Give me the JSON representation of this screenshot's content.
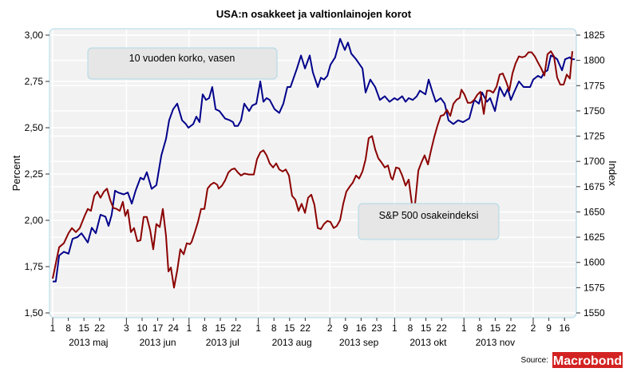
{
  "chart_data": {
    "type": "line",
    "title": "USA:n osakkeet ja valtionlainojen korot",
    "x_unit": "days since 2013-05-01",
    "ylabel_left": "Percent",
    "ylabel_right": "Index",
    "ylim_left": [
      1.5,
      3.0
    ],
    "ylim_right": [
      1550,
      1825
    ],
    "yticks_left": [
      "3,00",
      "2,75",
      "2,50",
      "2,25",
      "2,00",
      "1,75",
      "1,50"
    ],
    "yticks_left_values": [
      3.0,
      2.75,
      2.5,
      2.25,
      2.0,
      1.75,
      1.5
    ],
    "yticks_right": [
      "1825",
      "1800",
      "1775",
      "1750",
      "1725",
      "1700",
      "1675",
      "1650",
      "1625",
      "1600",
      "1575",
      "1550"
    ],
    "yticks_right_values": [
      1825,
      1800,
      1775,
      1750,
      1725,
      1700,
      1675,
      1650,
      1625,
      1600,
      1575,
      1550
    ],
    "xticks": [
      {
        "label": "1",
        "day": 0,
        "major": true
      },
      {
        "label": "8",
        "day": 7
      },
      {
        "label": "15",
        "day": 14
      },
      {
        "label": "22",
        "day": 21
      },
      {
        "label": "3",
        "day": 33,
        "major": true
      },
      {
        "label": "10",
        "day": 40
      },
      {
        "label": "17",
        "day": 47
      },
      {
        "label": "24",
        "day": 54
      },
      {
        "label": "1",
        "day": 61,
        "major": true
      },
      {
        "label": "8",
        "day": 68
      },
      {
        "label": "15",
        "day": 75
      },
      {
        "label": "22",
        "day": 82
      },
      {
        "label": "1",
        "day": 92,
        "major": true
      },
      {
        "label": "8",
        "day": 99
      },
      {
        "label": "15",
        "day": 106
      },
      {
        "label": "22",
        "day": 113
      },
      {
        "label": "2",
        "day": 124,
        "major": true
      },
      {
        "label": "9",
        "day": 131
      },
      {
        "label": "16",
        "day": 138
      },
      {
        "label": "23",
        "day": 145
      },
      {
        "label": "1",
        "day": 153,
        "major": true
      },
      {
        "label": "8",
        "day": 160
      },
      {
        "label": "15",
        "day": 167
      },
      {
        "label": "22",
        "day": 174
      },
      {
        "label": "1",
        "day": 184,
        "major": true
      },
      {
        "label": "8",
        "day": 191
      },
      {
        "label": "15",
        "day": 198
      },
      {
        "label": "22",
        "day": 205
      },
      {
        "label": "2",
        "day": 215,
        "major": true
      },
      {
        "label": "9",
        "day": 222
      },
      {
        "label": "16",
        "day": 229
      }
    ],
    "month_labels": [
      {
        "label": "2013 maj",
        "day": 16
      },
      {
        "label": "2013 jun",
        "day": 47
      },
      {
        "label": "2013 jul",
        "day": 76
      },
      {
        "label": "2013 aug",
        "day": 107
      },
      {
        "label": "2013 sep",
        "day": 137
      },
      {
        "label": "2013 okt",
        "day": 168
      },
      {
        "label": "2013 nov",
        "day": 198
      }
    ],
    "grid": true,
    "series": [
      {
        "name": "10 vuoden korko, vasen",
        "axis": "left",
        "color": "#00008b",
        "x": [
          0,
          1.4,
          2.9,
          5,
          7.1,
          8.9,
          11.1,
          12.9,
          15.7,
          17.5,
          19.3,
          21.4,
          23.6,
          25,
          26.4,
          27.9,
          29.3,
          31.8,
          33.6,
          35.4,
          37.1,
          39.3,
          40.7,
          42.1,
          44.3,
          46.4,
          48.6,
          50.7,
          52.1,
          53.9,
          55.7,
          57.9,
          59.6,
          60.7,
          62.9,
          64.3,
          65.7,
          67.1,
          68.6,
          70,
          71.4,
          72.9,
          74.6,
          77.1,
          79.3,
          80.7,
          81.4,
          82.9,
          84.3,
          85.7,
          87.9,
          89.3,
          91.1,
          92.9,
          94.3,
          95.7,
          97.1,
          99.3,
          101.4,
          103.2,
          105,
          106.4,
          109.3,
          111.1,
          112.9,
          115,
          116.4,
          118.6,
          120,
          121.4,
          122.9,
          124.3,
          126.4,
          128.6,
          130.7,
          132.1,
          133.6,
          135.7,
          138.6,
          140,
          142.1,
          144.3,
          146.4,
          148.6,
          150.7,
          152.9,
          154.3,
          156.4,
          157.9,
          159.3,
          161.1,
          162.9,
          164.3,
          166.8,
          168.2,
          170,
          171.4,
          173.6,
          175.4,
          177.1,
          179.3,
          181.4,
          183.6,
          185,
          186.4,
          188.6,
          190.7,
          192.1,
          194.3,
          195.7,
          197.9,
          200,
          202.1,
          203.6,
          205,
          206.4,
          208.6,
          210.7,
          213.6,
          215,
          217.1,
          218.6,
          220,
          221.4,
          222.9,
          224.6,
          225.7,
          227.9,
          229.3,
          231.4,
          232.1,
          233.6
        ],
        "values": [
          1.67,
          1.67,
          1.81,
          1.83,
          1.82,
          1.9,
          1.91,
          1.93,
          1.88,
          1.96,
          1.93,
          2.03,
          2.02,
          1.97,
          2.03,
          2.16,
          2.15,
          2.14,
          2.15,
          2.09,
          2.16,
          2.23,
          2.22,
          2.26,
          2.17,
          2.19,
          2.35,
          2.44,
          2.54,
          2.6,
          2.63,
          2.54,
          2.52,
          2.5,
          2.52,
          2.56,
          2.53,
          2.68,
          2.65,
          2.66,
          2.72,
          2.6,
          2.59,
          2.55,
          2.54,
          2.53,
          2.51,
          2.51,
          2.54,
          2.63,
          2.59,
          2.62,
          2.63,
          2.75,
          2.64,
          2.66,
          2.65,
          2.6,
          2.58,
          2.63,
          2.72,
          2.72,
          2.82,
          2.89,
          2.82,
          2.89,
          2.8,
          2.72,
          2.77,
          2.76,
          2.78,
          2.84,
          2.88,
          2.98,
          2.92,
          2.96,
          2.9,
          2.87,
          2.82,
          2.69,
          2.76,
          2.72,
          2.65,
          2.67,
          2.64,
          2.66,
          2.65,
          2.67,
          2.64,
          2.66,
          2.65,
          2.67,
          2.7,
          2.68,
          2.76,
          2.69,
          2.64,
          2.66,
          2.63,
          2.54,
          2.52,
          2.54,
          2.53,
          2.54,
          2.55,
          2.65,
          2.63,
          2.69,
          2.64,
          2.66,
          2.59,
          2.72,
          2.67,
          2.71,
          2.65,
          2.69,
          2.75,
          2.72,
          2.72,
          2.76,
          2.78,
          2.77,
          2.8,
          2.81,
          2.89,
          2.88,
          2.87,
          2.81,
          2.87,
          2.88,
          2.87,
          2.87
        ]
      },
      {
        "name": "S&P 500 osakeindeksi",
        "axis": "right",
        "color": "#8b0000",
        "x": [
          0,
          1.4,
          2.9,
          5,
          7.1,
          8.6,
          10.4,
          12.1,
          14.3,
          15.7,
          17.1,
          18.6,
          20,
          21.4,
          22.9,
          24.3,
          25.7,
          27.1,
          28.6,
          30,
          31.4,
          32.5,
          33.6,
          35,
          36.4,
          37.9,
          39.3,
          40.7,
          42.1,
          43.6,
          45,
          46.4,
          47.9,
          49.3,
          50.7,
          51.8,
          52.9,
          54.3,
          55.7,
          57.1,
          58.6,
          60,
          61.4,
          62.1,
          63.6,
          65,
          66.4,
          67.9,
          69.3,
          70.7,
          72.1,
          73.6,
          74.3,
          75.7,
          77.1,
          78.6,
          80,
          81.4,
          82.9,
          84.3,
          85.7,
          87.9,
          90,
          91.4,
          92.9,
          94.3,
          95.7,
          97.1,
          98.6,
          100,
          101.4,
          102.9,
          104.3,
          105.7,
          107.1,
          108.6,
          110,
          111.4,
          112.9,
          114.3,
          115.7,
          117.1,
          118.6,
          120,
          121.4,
          122.9,
          124.3,
          125.7,
          127.1,
          128.6,
          130,
          131.4,
          132.9,
          134.3,
          135.7,
          137.1,
          138.6,
          140,
          141.4,
          142.9,
          144.3,
          145.7,
          147.1,
          148.6,
          150,
          151.4,
          152.1,
          153.6,
          155,
          156.4,
          157.9,
          159.3,
          160.7,
          162.1,
          163.6,
          165,
          166.4,
          167.9,
          169.3,
          170.7,
          172.1,
          173.6,
          175,
          176.4,
          177.9,
          179.3,
          180.7,
          182.1,
          182.9,
          184.3,
          185.7,
          187.1,
          188.6,
          190,
          191.4,
          192.9,
          194.3,
          195.7,
          197.1,
          198.6,
          200,
          201.4,
          202.9,
          204.3,
          205.7,
          207.1,
          208.6,
          210,
          211.4,
          212.9,
          214.3,
          215.7,
          217.1,
          218.6,
          220,
          221.4,
          222.9,
          224.3,
          225.7,
          227.1,
          228.6,
          230,
          231.4,
          232.5
        ],
        "values": [
          1584,
          1599,
          1615,
          1619,
          1629,
          1634,
          1630,
          1634,
          1646,
          1653,
          1651,
          1666,
          1670,
          1664,
          1670,
          1673,
          1662,
          1654,
          1653,
          1651,
          1660,
          1646,
          1652,
          1630,
          1634,
          1621,
          1622,
          1645,
          1645,
          1632,
          1613,
          1638,
          1635,
          1653,
          1626,
          1591,
          1595,
          1575,
          1592,
          1613,
          1608,
          1619,
          1618,
          1620,
          1630,
          1640,
          1653,
          1653,
          1673,
          1677,
          1679,
          1677,
          1673,
          1676,
          1681,
          1689,
          1692,
          1693,
          1689,
          1686,
          1688,
          1687,
          1687,
          1702,
          1709,
          1711,
          1706,
          1698,
          1694,
          1698,
          1692,
          1690,
          1692,
          1686,
          1666,
          1662,
          1651,
          1658,
          1649,
          1664,
          1667,
          1657,
          1634,
          1633,
          1638,
          1641,
          1640,
          1634,
          1636,
          1642,
          1658,
          1670,
          1675,
          1679,
          1686,
          1683,
          1690,
          1702,
          1723,
          1725,
          1712,
          1703,
          1699,
          1694,
          1696,
          1684,
          1682,
          1694,
          1693,
          1686,
          1676,
          1682,
          1658,
          1657,
          1691,
          1699,
          1706,
          1697,
          1711,
          1724,
          1735,
          1745,
          1746,
          1751,
          1745,
          1757,
          1761,
          1763,
          1771,
          1766,
          1758,
          1758,
          1761,
          1766,
          1769,
          1747,
          1770,
          1770,
          1768,
          1774,
          1786,
          1787,
          1779,
          1770,
          1787,
          1797,
          1804,
          1803,
          1804,
          1808,
          1808,
          1804,
          1798,
          1792,
          1785,
          1806,
          1809,
          1804,
          1783,
          1776,
          1776,
          1786,
          1782,
          1809
        ]
      }
    ]
  },
  "source_label": "Source:",
  "logo_text": "Macrobond"
}
